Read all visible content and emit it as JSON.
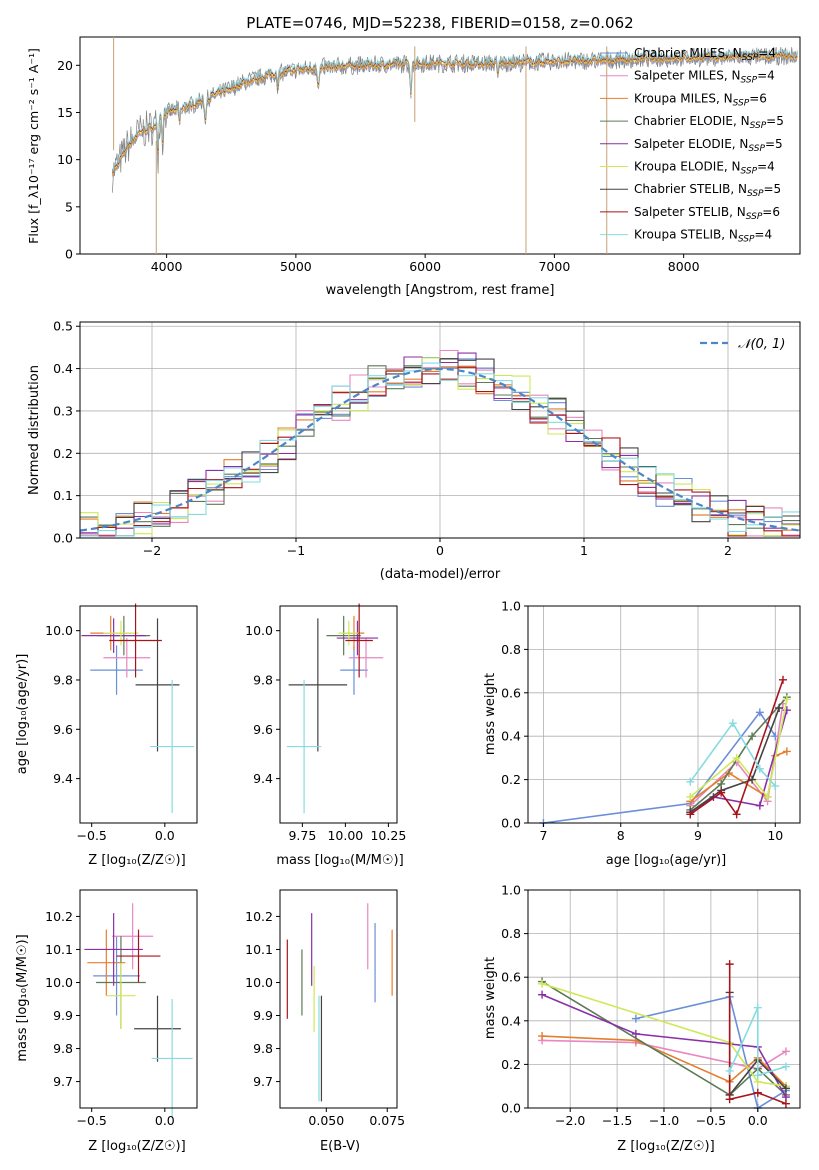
{
  "figure": {
    "title": "PLATE=0746, MJD=52238, FIBERID=0158, z=0.062"
  },
  "colors": {
    "Chabrier MILES": "#6a8fd8",
    "Salpeter MILES": "#e887c0",
    "Kroupa MILES": "#e57e2c",
    "Chabrier ELODIE": "#5c7a55",
    "Salpeter ELODIE": "#8a2fa8",
    "Kroupa ELODIE": "#cfe85a",
    "Chabrier STELIB": "#444444",
    "Salpeter STELIB": "#a8141c",
    "Kroupa STELIB": "#86dbe0",
    "data": "#808080",
    "normal": "#4a86c8"
  },
  "chart_data": [
    {
      "id": "spectrum",
      "type": "line",
      "xlabel": "wavelength [Angstrom, rest frame]",
      "ylabel": "Flux [f_λ10⁻¹⁷ erg cm⁻² s⁻¹ A⁻¹]",
      "xlim": [
        3330,
        8900
      ],
      "ylim": [
        0,
        23
      ],
      "xticks": [
        4000,
        5000,
        6000,
        7000,
        8000
      ],
      "yticks": [
        0,
        5,
        10,
        15,
        20
      ],
      "legend_position": "right",
      "legend": [
        {
          "name": "Chabrier MILES",
          "nssp": "4"
        },
        {
          "name": "Salpeter MILES",
          "nssp": "4"
        },
        {
          "name": "Kroupa MILES",
          "nssp": "6"
        },
        {
          "name": "Chabrier ELODIE",
          "nssp": "5"
        },
        {
          "name": "Salpeter ELODIE",
          "nssp": "5"
        },
        {
          "name": "Kroupa ELODIE",
          "nssp": "4"
        },
        {
          "name": "Chabrier STELIB",
          "nssp": "5"
        },
        {
          "name": "Salpeter STELIB",
          "nssp": "6"
        },
        {
          "name": "Kroupa STELIB",
          "nssp": "4"
        }
      ],
      "continuum": [
        [
          3580,
          8.5
        ],
        [
          3700,
          11.5
        ],
        [
          3800,
          13.0
        ],
        [
          3900,
          13.5
        ],
        [
          4000,
          15.0
        ],
        [
          4200,
          15.8
        ],
        [
          4400,
          17.0
        ],
        [
          4600,
          18.2
        ],
        [
          4800,
          19.0
        ],
        [
          5000,
          19.5
        ],
        [
          5200,
          19.8
        ],
        [
          5500,
          20.0
        ],
        [
          6000,
          20.2
        ],
        [
          6500,
          20.2
        ],
        [
          7000,
          20.4
        ],
        [
          7500,
          20.6
        ],
        [
          8000,
          20.8
        ],
        [
          8500,
          20.9
        ],
        [
          8880,
          21.0
        ]
      ]
    },
    {
      "id": "residuals",
      "type": "bar",
      "xlabel": "(data-model)/error",
      "ylabel": "Normed distribution",
      "xlim": [
        -2.5,
        2.5
      ],
      "ylim": [
        0,
        0.51
      ],
      "xticks": [
        -2,
        -1,
        0,
        1,
        2
      ],
      "yticks": [
        0.0,
        0.1,
        0.2,
        0.3,
        0.4,
        0.5
      ],
      "grid": true,
      "legend_position": "top-right",
      "normal_label": "𝒩(0, 1)"
    },
    {
      "id": "z-age",
      "type": "scatter",
      "xlabel": "Z [log₁₀(Z/Z☉)]",
      "ylabel": "age  [log₁₀(age/yr)]",
      "xlim": [
        -0.58,
        0.22
      ],
      "ylim": [
        9.22,
        10.1
      ],
      "xticks": [
        -0.5,
        0.0
      ],
      "yticks": [
        9.4,
        9.6,
        9.8,
        10.0
      ],
      "points": [
        {
          "series": "Chabrier MILES",
          "x": -0.33,
          "y": 9.84,
          "xe": 0.18,
          "ye": 0.1
        },
        {
          "series": "Salpeter MILES",
          "x": -0.26,
          "y": 9.89,
          "xe": 0.16,
          "ye": 0.08
        },
        {
          "series": "Kroupa MILES",
          "x": -0.37,
          "y": 9.99,
          "xe": 0.14,
          "ye": 0.07
        },
        {
          "series": "Chabrier ELODIE",
          "x": -0.28,
          "y": 9.98,
          "xe": 0.18,
          "ye": 0.08
        },
        {
          "series": "Salpeter ELODIE",
          "x": -0.35,
          "y": 9.98,
          "xe": 0.22,
          "ye": 0.07
        },
        {
          "series": "Kroupa ELODIE",
          "x": -0.3,
          "y": 9.99,
          "xe": 0.12,
          "ye": 0.05
        },
        {
          "series": "Chabrier STELIB",
          "x": -0.05,
          "y": 9.78,
          "xe": 0.15,
          "ye": 0.27
        },
        {
          "series": "Salpeter STELIB",
          "x": -0.2,
          "y": 9.96,
          "xe": 0.18,
          "ye": 0.15
        },
        {
          "series": "Kroupa STELIB",
          "x": 0.05,
          "y": 9.53,
          "xe": 0.15,
          "ye": 0.27
        }
      ]
    },
    {
      "id": "mass-age",
      "type": "scatter",
      "xlabel": "mass [log₁₀(M/M☉)]",
      "ylabel": "",
      "xlim": [
        9.62,
        10.3
      ],
      "ylim": [
        9.22,
        10.1
      ],
      "xticks": [
        9.75,
        10.0,
        10.25
      ],
      "yticks": [
        9.4,
        9.6,
        9.8,
        10.0
      ],
      "points": [
        {
          "series": "Chabrier MILES",
          "x": 10.05,
          "y": 9.84,
          "xe": 0.08,
          "ye": 0.1
        },
        {
          "series": "Salpeter MILES",
          "x": 10.12,
          "y": 9.89,
          "xe": 0.1,
          "ye": 0.08
        },
        {
          "series": "Kroupa MILES",
          "x": 10.05,
          "y": 9.99,
          "xe": 0.06,
          "ye": 0.07
        },
        {
          "series": "Chabrier ELODIE",
          "x": 9.99,
          "y": 9.98,
          "xe": 0.1,
          "ye": 0.08
        },
        {
          "series": "Salpeter ELODIE",
          "x": 10.07,
          "y": 9.97,
          "xe": 0.12,
          "ye": 0.07
        },
        {
          "series": "Kroupa ELODIE",
          "x": 10.02,
          "y": 9.99,
          "xe": 0.06,
          "ye": 0.05
        },
        {
          "series": "Chabrier STELIB",
          "x": 9.84,
          "y": 9.78,
          "xe": 0.17,
          "ye": 0.27
        },
        {
          "series": "Salpeter STELIB",
          "x": 10.08,
          "y": 9.96,
          "xe": 0.08,
          "ye": 0.15
        },
        {
          "series": "Kroupa STELIB",
          "x": 9.76,
          "y": 9.53,
          "xe": 0.1,
          "ye": 0.27
        }
      ]
    },
    {
      "id": "age-weight",
      "type": "line",
      "xlabel": "age  [log₁₀(age/yr)]",
      "ylabel": "mass weight",
      "xlim": [
        6.8,
        10.32
      ],
      "ylim": [
        0,
        1.0
      ],
      "xticks": [
        7,
        8,
        9,
        10
      ],
      "yticks": [
        0.0,
        0.2,
        0.4,
        0.6,
        0.8,
        1.0
      ],
      "grid": true,
      "series": [
        {
          "name": "Chabrier MILES",
          "points": [
            [
              7.0,
              0.0
            ],
            [
              8.9,
              0.09
            ],
            [
              9.8,
              0.51
            ],
            [
              10.0,
              0.4
            ]
          ]
        },
        {
          "name": "Salpeter MILES",
          "points": [
            [
              8.9,
              0.08
            ],
            [
              9.5,
              0.28
            ],
            [
              9.9,
              0.1
            ],
            [
              10.1,
              0.55
            ]
          ]
        },
        {
          "name": "Kroupa MILES",
          "points": [
            [
              8.9,
              0.1
            ],
            [
              9.4,
              0.23
            ],
            [
              9.9,
              0.12
            ],
            [
              10.0,
              0.31
            ],
            [
              10.15,
              0.33
            ]
          ]
        },
        {
          "name": "Chabrier ELODIE",
          "points": [
            [
              8.9,
              0.06
            ],
            [
              9.3,
              0.18
            ],
            [
              9.7,
              0.4
            ],
            [
              10.15,
              0.58
            ]
          ]
        },
        {
          "name": "Salpeter ELODIE",
          "points": [
            [
              8.9,
              0.05
            ],
            [
              9.2,
              0.12
            ],
            [
              9.8,
              0.08
            ],
            [
              10.15,
              0.52
            ]
          ]
        },
        {
          "name": "Kroupa ELODIE",
          "points": [
            [
              8.9,
              0.12
            ],
            [
              9.5,
              0.3
            ],
            [
              9.9,
              0.12
            ],
            [
              10.15,
              0.57
            ]
          ]
        },
        {
          "name": "Chabrier STELIB",
          "points": [
            [
              8.9,
              0.05
            ],
            [
              9.3,
              0.15
            ],
            [
              9.7,
              0.2
            ],
            [
              10.05,
              0.53
            ]
          ]
        },
        {
          "name": "Salpeter STELIB",
          "points": [
            [
              8.9,
              0.04
            ],
            [
              9.3,
              0.14
            ],
            [
              9.5,
              0.04
            ],
            [
              10.1,
              0.66
            ]
          ]
        },
        {
          "name": "Kroupa STELIB",
          "points": [
            [
              8.9,
              0.19
            ],
            [
              9.45,
              0.46
            ],
            [
              9.8,
              0.25
            ],
            [
              10.0,
              0.17
            ]
          ]
        }
      ]
    },
    {
      "id": "z-mass",
      "type": "scatter",
      "xlabel": "Z [log₁₀(Z/Z☉)]",
      "ylabel": "mass [log₁₀(M/M☉)]",
      "xlim": [
        -0.58,
        0.22
      ],
      "ylim": [
        9.62,
        10.28
      ],
      "xticks": [
        -0.5,
        0.0
      ],
      "yticks": [
        9.7,
        9.8,
        9.9,
        10.0,
        10.1,
        10.2
      ],
      "points": [
        {
          "series": "Chabrier MILES",
          "x": -0.33,
          "y": 10.02,
          "xe": 0.16,
          "ye": 0.12
        },
        {
          "series": "Salpeter MILES",
          "x": -0.22,
          "y": 10.14,
          "xe": 0.14,
          "ye": 0.1
        },
        {
          "series": "Kroupa MILES",
          "x": -0.4,
          "y": 10.06,
          "xe": 0.13,
          "ye": 0.1
        },
        {
          "series": "Chabrier ELODIE",
          "x": -0.3,
          "y": 10.0,
          "xe": 0.17,
          "ye": 0.14
        },
        {
          "series": "Salpeter ELODIE",
          "x": -0.35,
          "y": 10.1,
          "xe": 0.2,
          "ye": 0.11
        },
        {
          "series": "Kroupa ELODIE",
          "x": -0.3,
          "y": 9.96,
          "xe": 0.1,
          "ye": 0.1
        },
        {
          "series": "Chabrier STELIB",
          "x": -0.05,
          "y": 9.86,
          "xe": 0.16,
          "ye": 0.1
        },
        {
          "series": "Salpeter STELIB",
          "x": -0.18,
          "y": 10.08,
          "xe": 0.15,
          "ye": 0.08
        },
        {
          "series": "Kroupa STELIB",
          "x": 0.05,
          "y": 9.77,
          "xe": 0.14,
          "ye": 0.18
        }
      ]
    },
    {
      "id": "ebv-mass",
      "type": "scatter",
      "xlabel": "E(B-V)",
      "ylabel": "",
      "xlim": [
        0.031,
        0.079
      ],
      "ylim": [
        9.62,
        10.28
      ],
      "xticks": [
        0.05,
        0.075
      ],
      "yticks": [
        9.7,
        9.8,
        9.9,
        10.0,
        10.1,
        10.2
      ],
      "points": [
        {
          "series": "Chabrier MILES",
          "x": 0.07,
          "y": 10.06,
          "xe": 0,
          "ye": 0.12
        },
        {
          "series": "Salpeter MILES",
          "x": 0.067,
          "y": 10.14,
          "xe": 0,
          "ye": 0.1
        },
        {
          "series": "Kroupa MILES",
          "x": 0.077,
          "y": 10.06,
          "xe": 0,
          "ye": 0.1
        },
        {
          "series": "Chabrier ELODIE",
          "x": 0.04,
          "y": 10.0,
          "xe": 0,
          "ye": 0.1
        },
        {
          "series": "Salpeter ELODIE",
          "x": 0.044,
          "y": 10.1,
          "xe": 0,
          "ye": 0.11
        },
        {
          "series": "Kroupa ELODIE",
          "x": 0.045,
          "y": 9.95,
          "xe": 0,
          "ye": 0.1
        },
        {
          "series": "Chabrier STELIB",
          "x": 0.048,
          "y": 9.8,
          "xe": 0,
          "ye": 0.16
        },
        {
          "series": "Salpeter STELIB",
          "x": 0.034,
          "y": 10.01,
          "xe": 0,
          "ye": 0.12
        },
        {
          "series": "Kroupa STELIB",
          "x": 0.047,
          "y": 9.8,
          "xe": 0,
          "ye": 0.16
        }
      ]
    },
    {
      "id": "z-weight",
      "type": "line",
      "xlabel": "Z [log₁₀(Z/Z☉)]",
      "ylabel": "mass weight",
      "xlim": [
        -2.45,
        0.45
      ],
      "ylim": [
        0,
        1.0
      ],
      "xticks": [
        -2.0,
        -1.5,
        -1.0,
        -0.5,
        0.0
      ],
      "yticks": [
        0.0,
        0.2,
        0.4,
        0.6,
        0.8,
        1.0
      ],
      "grid": true,
      "series": [
        {
          "name": "Chabrier MILES",
          "points": [
            [
              -1.3,
              0.41
            ],
            [
              -0.3,
              0.51
            ],
            [
              0.0,
              0.0
            ],
            [
              0.3,
              0.08
            ]
          ]
        },
        {
          "name": "Salpeter MILES",
          "points": [
            [
              -2.3,
              0.31
            ],
            [
              -1.3,
              0.3
            ],
            [
              0.0,
              0.18
            ],
            [
              0.3,
              0.26
            ]
          ]
        },
        {
          "name": "Kroupa MILES",
          "points": [
            [
              -2.3,
              0.33
            ],
            [
              -1.3,
              0.31
            ],
            [
              -0.3,
              0.12
            ],
            [
              0.0,
              0.23
            ],
            [
              0.3,
              0.1
            ]
          ]
        },
        {
          "name": "Chabrier ELODIE",
          "points": [
            [
              -2.3,
              0.58
            ],
            [
              -0.3,
              0.06
            ],
            [
              0.0,
              0.18
            ],
            [
              0.3,
              0.06
            ]
          ]
        },
        {
          "name": "Salpeter ELODIE",
          "points": [
            [
              -2.3,
              0.52
            ],
            [
              -1.3,
              0.34
            ],
            [
              0.0,
              0.28
            ],
            [
              0.3,
              0.05
            ]
          ]
        },
        {
          "name": "Kroupa ELODIE",
          "points": [
            [
              -2.3,
              0.57
            ],
            [
              -0.3,
              0.3
            ],
            [
              0.0,
              0.12
            ],
            [
              0.3,
              0.1
            ]
          ]
        },
        {
          "name": "Chabrier STELIB",
          "points": [
            [
              -0.3,
              0.53
            ],
            [
              -0.3,
              0.06
            ],
            [
              0.0,
              0.22
            ],
            [
              0.3,
              0.09
            ]
          ]
        },
        {
          "name": "Salpeter STELIB",
          "points": [
            [
              -0.3,
              0.66
            ],
            [
              -0.3,
              0.04
            ],
            [
              0.0,
              0.07
            ],
            [
              0.3,
              0.02
            ]
          ]
        },
        {
          "name": "Kroupa STELIB",
          "points": [
            [
              -0.3,
              0.17
            ],
            [
              0.0,
              0.46
            ],
            [
              0.0,
              0.15
            ],
            [
              0.3,
              0.19
            ]
          ]
        }
      ]
    }
  ]
}
